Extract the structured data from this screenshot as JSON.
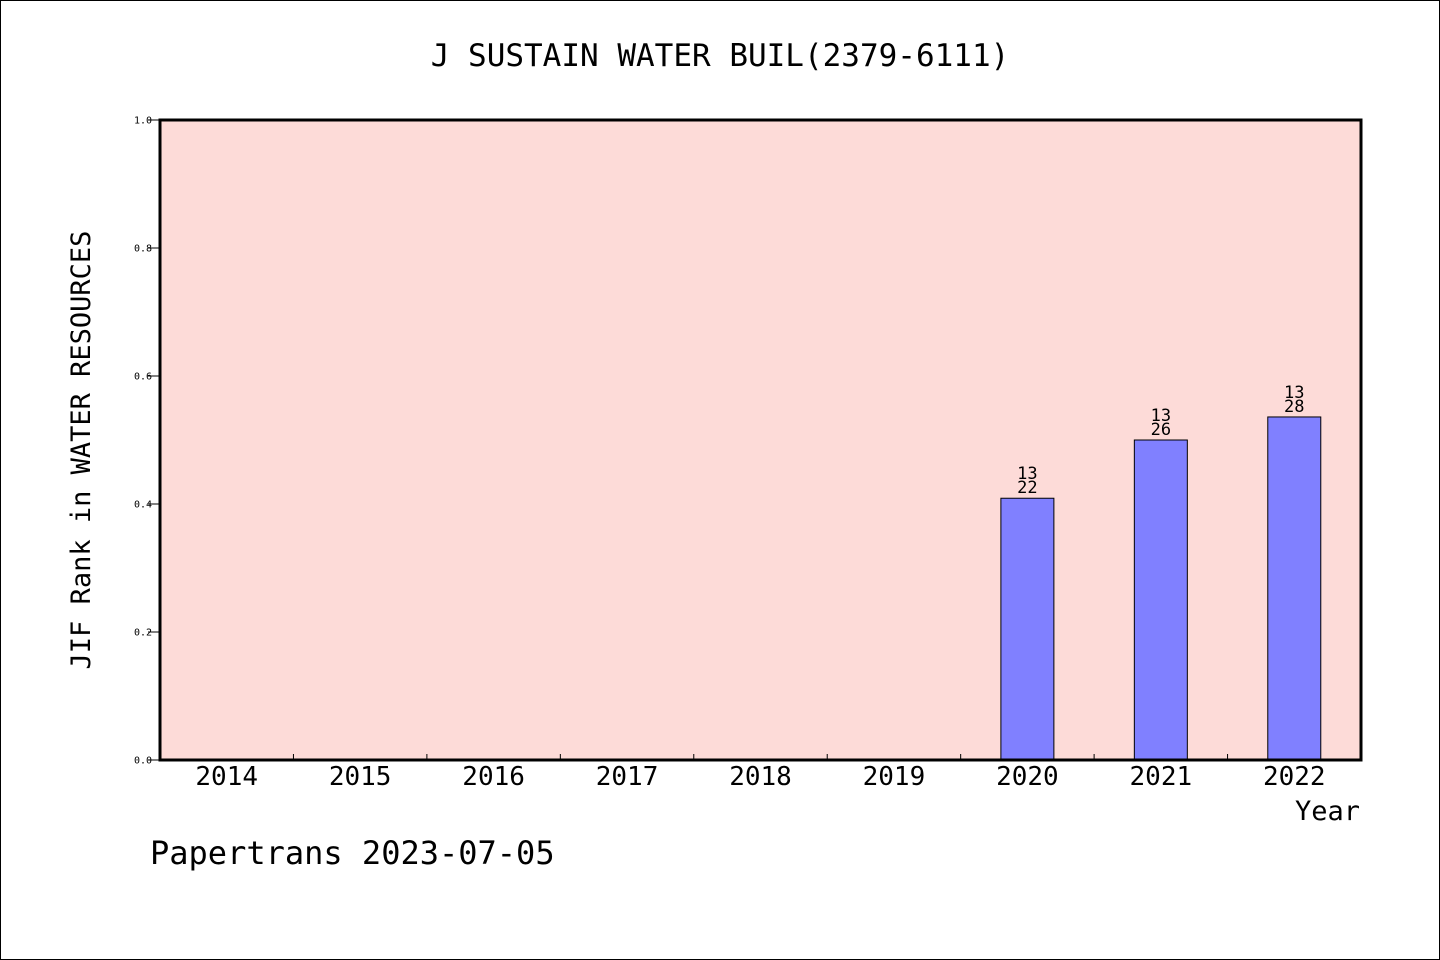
{
  "chart_data": {
    "type": "bar",
    "title": "J SUSTAIN WATER BUIL(2379-6111)",
    "xlabel": "Year",
    "ylabel": "JIF Rank in WATER RESOURCES",
    "categories": [
      "2014",
      "2015",
      "2016",
      "2017",
      "2018",
      "2019",
      "2020",
      "2021",
      "2022"
    ],
    "values": [
      null,
      null,
      null,
      null,
      null,
      null,
      0.409,
      0.5,
      0.536
    ],
    "labels": [
      null,
      null,
      null,
      null,
      null,
      null,
      [
        "13",
        "22"
      ],
      [
        "13",
        "26"
      ],
      [
        "13",
        "28"
      ]
    ],
    "ylim": [
      0,
      1.0
    ],
    "yticks": [
      "0.0",
      "0.2",
      "0.4",
      "0.6",
      "0.8",
      "1.0"
    ],
    "grid": false,
    "colors": {
      "plot_background": "#fddbd8",
      "bar": "#8080ff",
      "axis": "#000000"
    }
  },
  "footer": "Papertrans 2023-07-05"
}
